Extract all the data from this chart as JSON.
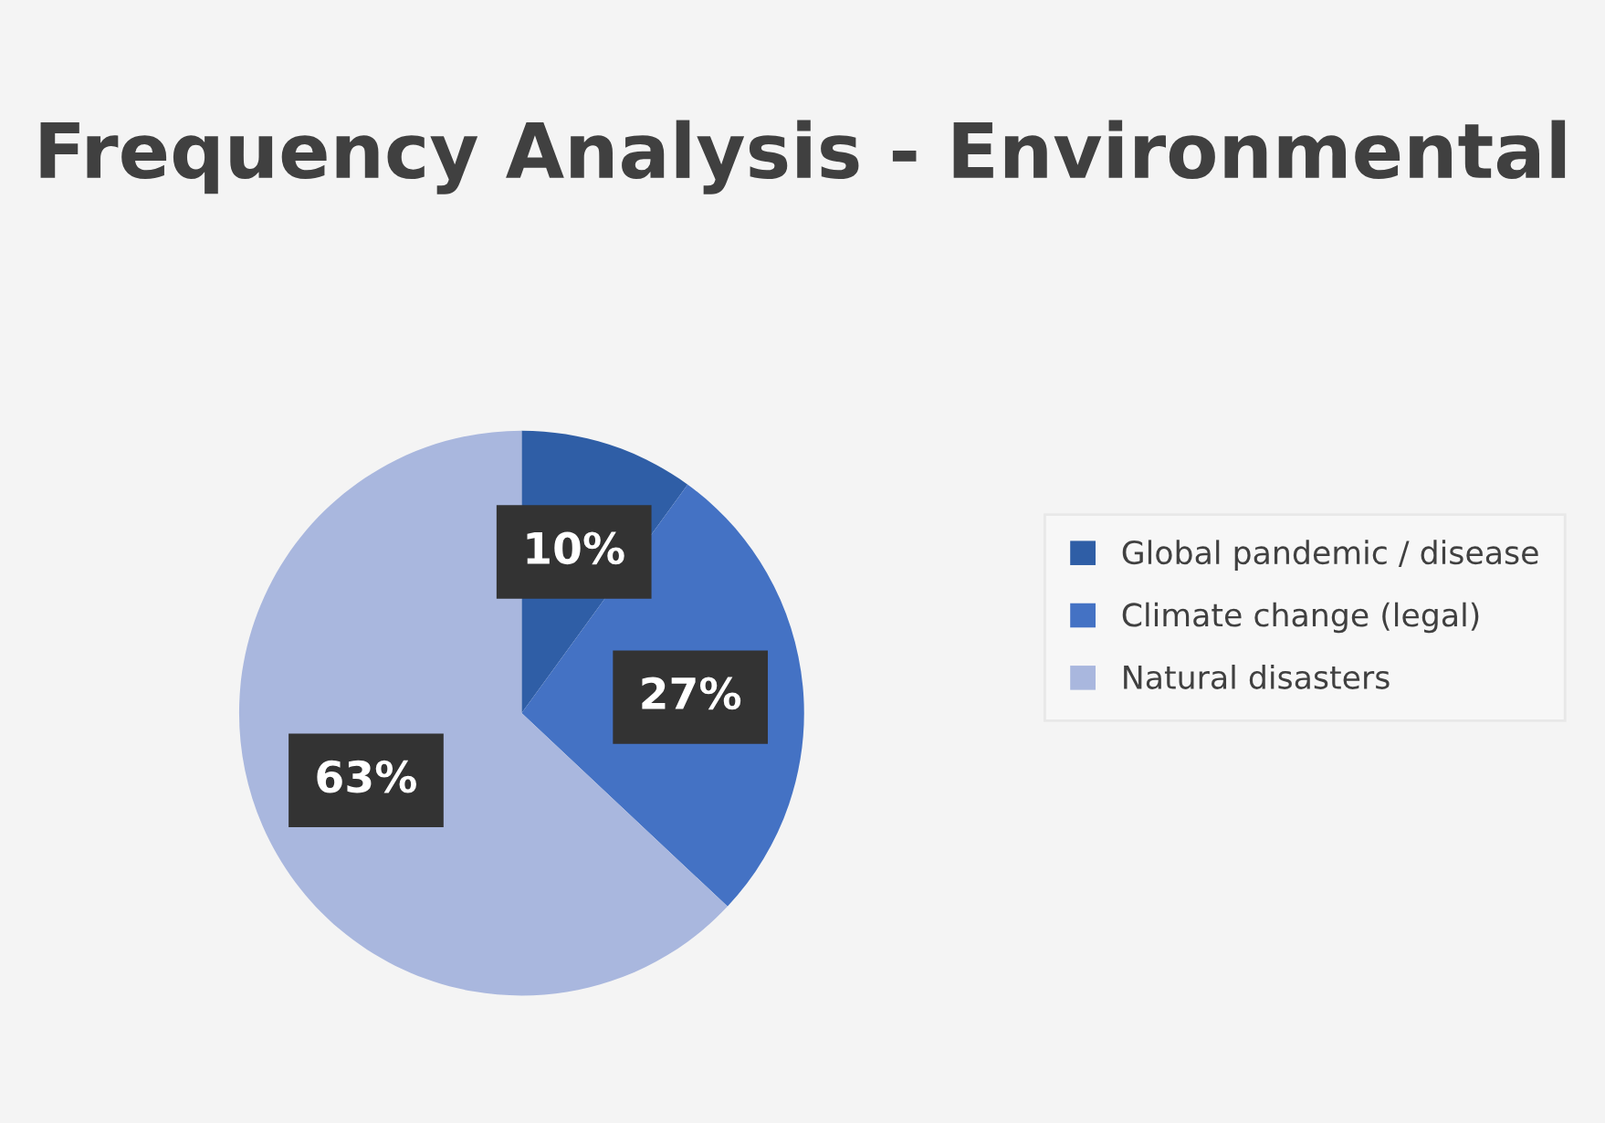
{
  "chart_data": {
    "type": "pie",
    "title": "Frequency Analysis - Environmental",
    "categories": [
      "Global pandemic / disease",
      "Climate change (legal)",
      "Natural disasters"
    ],
    "values": [
      10,
      27,
      63
    ],
    "colors": [
      "#2f5ea6",
      "#4472c4",
      "#a9b7de"
    ],
    "value_labels": [
      "10%",
      "27%",
      "63%"
    ],
    "legend": "right"
  }
}
